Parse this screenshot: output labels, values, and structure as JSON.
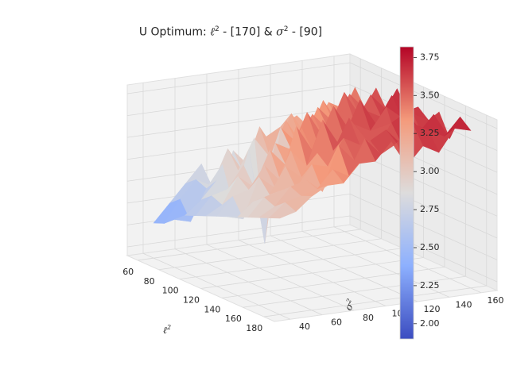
{
  "chart_data": {
    "type": "surface3d",
    "title_prefix": "U Optimum: ",
    "title_xsym": "ℓ",
    "title_mid": " - [170] & ",
    "title_ysym": "σ",
    "title_suffix": " - [90]",
    "title_sup": "2",
    "xlabel_sym": "ℓ",
    "ylabel_sym": "σ",
    "label_sup": "2",
    "colormap": "coolwarm",
    "grid": true,
    "colorbar_placement": "right",
    "x_ticks": [
      60,
      80,
      100,
      120,
      140,
      160,
      180
    ],
    "y_ticks": [
      40,
      60,
      80,
      100,
      120,
      140,
      160
    ],
    "z_ticks": [
      "2.00",
      "2.25",
      "2.50",
      "2.75",
      "3.00",
      "3.25",
      "3.50",
      "3.75"
    ],
    "colorbar_ticks": [
      "2.00",
      "2.25",
      "2.50",
      "2.75",
      "3.00",
      "3.25",
      "3.50",
      "3.75"
    ],
    "xlim": [
      50,
      190
    ],
    "ylim": [
      30,
      170
    ],
    "zlim": [
      1.9,
      3.85
    ],
    "clim": [
      1.9,
      3.82
    ],
    "x": [
      60,
      70,
      80,
      90,
      100,
      110,
      120,
      130,
      140,
      150,
      160,
      170,
      180
    ],
    "y": [
      40,
      50,
      60,
      70,
      80,
      90,
      100,
      110,
      120,
      130,
      140,
      150,
      160
    ],
    "z": [
      [
        2.3,
        2.35,
        2.45,
        2.55,
        2.6,
        2.65,
        2.7,
        2.75,
        2.8,
        2.85,
        2.9,
        2.95,
        3.0
      ],
      [
        2.5,
        2.6,
        2.4,
        2.7,
        2.8,
        2.75,
        2.9,
        2.7,
        2.95,
        3.05,
        3.0,
        3.1,
        3.05
      ],
      [
        2.7,
        2.8,
        2.75,
        2.9,
        2.85,
        3.05,
        2.95,
        3.15,
        3.0,
        3.1,
        3.2,
        3.15,
        3.2
      ],
      [
        2.9,
        2.7,
        3.0,
        2.6,
        3.1,
        2.9,
        3.2,
        3.0,
        3.3,
        3.1,
        3.25,
        3.2,
        3.3
      ],
      [
        2.4,
        3.1,
        2.9,
        3.2,
        2.5,
        3.3,
        3.0,
        3.4,
        3.15,
        3.35,
        3.1,
        3.4,
        3.3
      ],
      [
        3.0,
        2.8,
        3.25,
        2.1,
        3.3,
        3.1,
        3.6,
        3.2,
        3.4,
        3.3,
        3.6,
        3.3,
        3.5
      ],
      [
        2.8,
        3.3,
        3.0,
        3.4,
        3.2,
        3.5,
        3.3,
        3.7,
        3.4,
        3.6,
        3.4,
        3.7,
        3.5
      ],
      [
        3.1,
        3.0,
        3.4,
        3.2,
        3.6,
        3.3,
        3.5,
        3.4,
        3.75,
        3.5,
        3.6,
        3.5,
        3.7
      ],
      [
        3.2,
        3.4,
        3.1,
        3.5,
        3.3,
        3.7,
        3.4,
        3.6,
        3.5,
        3.4,
        3.7,
        3.6,
        3.4
      ],
      [
        3.3,
        3.1,
        3.5,
        3.3,
        3.6,
        3.4,
        3.8,
        3.5,
        3.6,
        3.7,
        3.5,
        3.8,
        3.6
      ],
      [
        3.1,
        3.5,
        3.3,
        3.7,
        3.4,
        3.6,
        3.5,
        3.75,
        3.4,
        3.8,
        3.6,
        3.7,
        3.5
      ],
      [
        3.4,
        3.2,
        3.6,
        3.4,
        3.7,
        3.5,
        3.8,
        3.6,
        3.7,
        3.5,
        3.8,
        3.6,
        3.75
      ],
      [
        3.3,
        3.6,
        3.4,
        3.7,
        3.5,
        3.8,
        3.6,
        3.7,
        3.6,
        3.75,
        3.5,
        3.8,
        3.7
      ]
    ]
  }
}
